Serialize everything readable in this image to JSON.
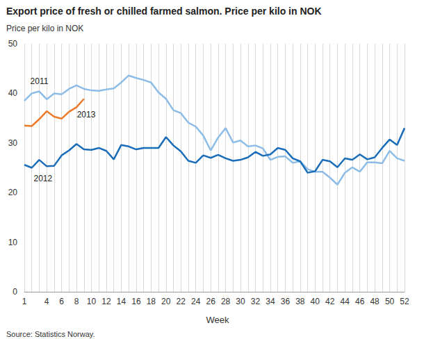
{
  "chart_data": {
    "type": "line",
    "title": "Export price of fresh or chilled farmed salmon. Price per kilo in NOK",
    "y_label": "Price per kilo in NOK",
    "x_label": "Week",
    "source": "Source: Statistics Norway.",
    "x": [
      1,
      2,
      3,
      4,
      5,
      6,
      7,
      8,
      9,
      10,
      11,
      12,
      13,
      14,
      15,
      16,
      17,
      18,
      19,
      20,
      21,
      22,
      23,
      24,
      25,
      26,
      27,
      28,
      29,
      30,
      31,
      32,
      33,
      34,
      35,
      36,
      37,
      38,
      39,
      40,
      41,
      42,
      43,
      44,
      45,
      46,
      47,
      48,
      49,
      50,
      51,
      52
    ],
    "xlim": [
      1,
      52
    ],
    "xticks": [
      1,
      4,
      6,
      8,
      10,
      12,
      14,
      16,
      18,
      20,
      22,
      24,
      26,
      28,
      30,
      32,
      34,
      36,
      38,
      40,
      42,
      44,
      46,
      48,
      50,
      52
    ],
    "ylim": [
      0,
      50
    ],
    "yticks": [
      0,
      10,
      20,
      30,
      40,
      50
    ],
    "grid": true,
    "series": [
      {
        "name": "2011",
        "color": "#8dbde6",
        "values": [
          38.5,
          40,
          40.4,
          38.8,
          40,
          39.8,
          40.9,
          41.6,
          40.9,
          40.6,
          40.5,
          40.8,
          41,
          42.2,
          43.6,
          43.1,
          42.7,
          42.2,
          40.2,
          38.9,
          36.6,
          36,
          34.1,
          33.3,
          31.5,
          28.5,
          31.1,
          33,
          30.1,
          30.5,
          29.3,
          29.5,
          28.9,
          26.6,
          27.2,
          27.3,
          26,
          26.3,
          24.7,
          24.2,
          24.2,
          23,
          21.6,
          24,
          25.1,
          24.2,
          26.1,
          26.1,
          25.9,
          28.4,
          26.9,
          26.4
        ]
      },
      {
        "name": "2012",
        "color": "#1a6db8",
        "values": [
          25.6,
          25,
          26.6,
          25.3,
          25.4,
          27.5,
          28.5,
          29.8,
          28.7,
          28.6,
          29,
          28.4,
          26.7,
          29.6,
          29.3,
          28.7,
          29,
          29,
          29,
          31.2,
          29.5,
          28.3,
          26.4,
          26,
          27.5,
          27,
          27.6,
          26.9,
          26.4,
          26.6,
          27.1,
          28.2,
          27.4,
          27.7,
          29,
          28.6,
          26.9,
          26.3,
          24,
          24.3,
          26.6,
          26.3,
          25.1,
          26.9,
          26.6,
          27.7,
          26.7,
          27.1,
          29,
          30.7,
          29.6,
          33
        ]
      },
      {
        "name": "2013",
        "color": "#ec7a2b",
        "values": [
          33.5,
          33.4,
          34.8,
          36.4,
          35.3,
          34.9,
          36.3,
          37.2,
          38.9,
          null,
          null,
          null,
          null,
          null,
          null,
          null,
          null,
          null,
          null,
          null,
          null,
          null,
          null,
          null,
          null,
          null,
          null,
          null,
          null,
          null,
          null,
          null,
          null,
          null,
          null,
          null,
          null,
          null,
          null,
          null,
          null,
          null,
          null,
          null,
          null,
          null,
          null,
          null,
          null,
          null,
          null,
          null
        ]
      }
    ],
    "annotations": [
      {
        "text": "2011",
        "x": 3,
        "y": 42.4
      },
      {
        "text": "2013",
        "x": 9.3,
        "y": 35.7
      },
      {
        "text": "2012",
        "x": 3.5,
        "y": 22.8
      }
    ]
  }
}
